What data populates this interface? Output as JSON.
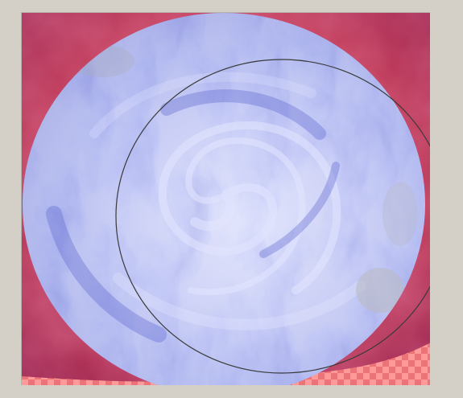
{
  "workspace": {
    "background": "#d4d0c8"
  },
  "document": {
    "layers": [
      {
        "name": "background",
        "kind": "red-magenta cloud texture",
        "color_primary": "#c8405c",
        "color_secondary": "#9e2350"
      },
      {
        "name": "planet",
        "kind": "blue swirl cloud texture clipped to circle",
        "color_primary": "#7a85e0",
        "color_highlight": "#dfe2ff"
      },
      {
        "name": "transparency",
        "kind": "checkerboard",
        "color_a": "#ff9a9a",
        "color_b": "#e86b70"
      }
    ],
    "selection": {
      "shape": "ellipse",
      "stroke_color": "#3a3a3a"
    }
  }
}
